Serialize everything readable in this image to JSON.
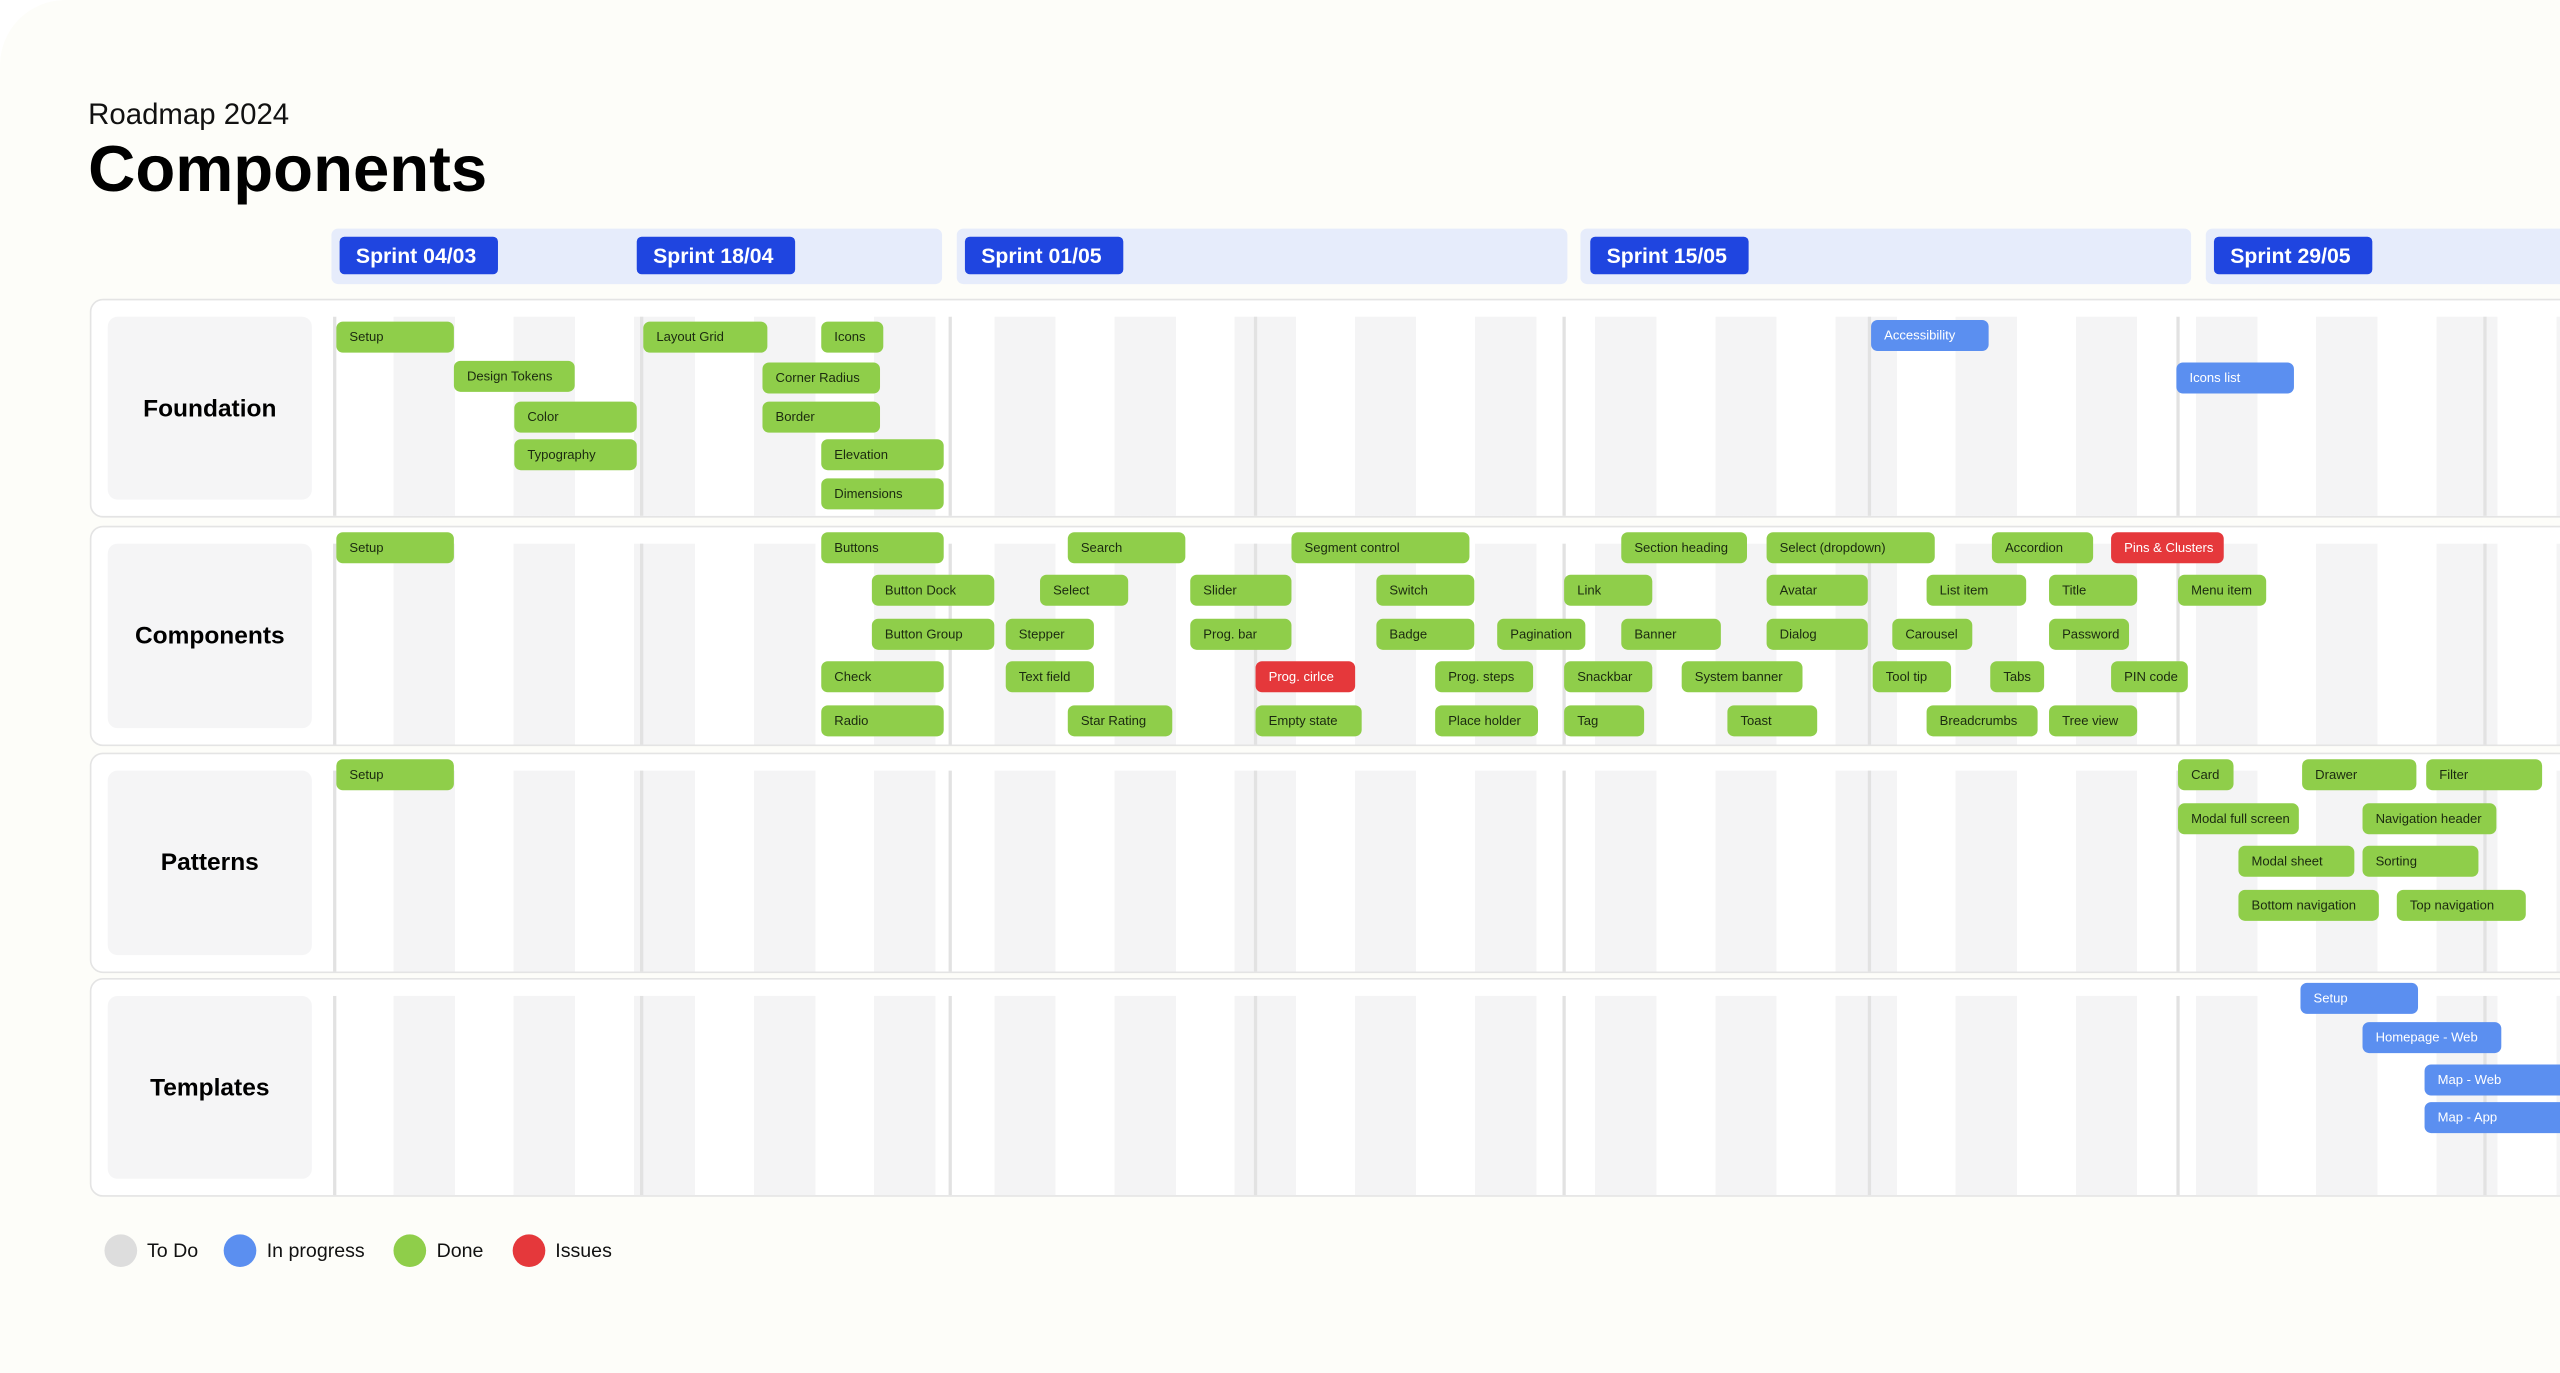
{
  "header": {
    "subtitle": "Roadmap 2024",
    "title": "Components"
  },
  "sprints": [
    "Sprint 04/03",
    "Sprint 18/04",
    "Sprint 01/05",
    "Sprint 15/05",
    "Sprint 29/05"
  ],
  "rows": [
    {
      "label": "Foundation",
      "tasks": [
        "Setup",
        "Design Tokens",
        "Color",
        "Typography",
        "Layout Grid",
        "Icons",
        "Corner Radius",
        "Border",
        "Elevation",
        "Dimensions",
        "Accessibility",
        "Icons list"
      ]
    },
    {
      "label": "Components",
      "tasks": [
        "Setup",
        "Buttons",
        "Search",
        "Segment control",
        "Section heading",
        "Select (dropdown)",
        "Accordion",
        "Pins & Clusters",
        "Button Dock",
        "Select",
        "Slider",
        "Switch",
        "Link",
        "Avatar",
        "List item",
        "Title",
        "Menu item",
        "Button Group",
        "Stepper",
        "Prog. bar",
        "Badge",
        "Pagination",
        "Banner",
        "Dialog",
        "Carousel",
        "Password",
        "Check",
        "Text field",
        "Prog. cirlce",
        "Prog. steps",
        "Snackbar",
        "System banner",
        "Tool tip",
        "Tabs",
        "PIN code",
        "Radio",
        "Star Rating",
        "Empty state",
        "Place holder",
        "Tag",
        "Toast",
        "Breadcrumbs",
        "Tree view"
      ]
    },
    {
      "label": "Patterns",
      "tasks": [
        "Setup",
        "Card",
        "Drawer",
        "Filter",
        "Modal full screen",
        "Navigation header",
        "Modal sheet",
        "Sorting",
        "Bottom navigation",
        "Top navigation"
      ]
    },
    {
      "label": "Templates",
      "tasks": [
        "Setup",
        "Homepage - Web",
        "Map - Web",
        "Map - App"
      ]
    }
  ],
  "legend": [
    "To Do",
    "In progress",
    "Done",
    "Issues"
  ]
}
